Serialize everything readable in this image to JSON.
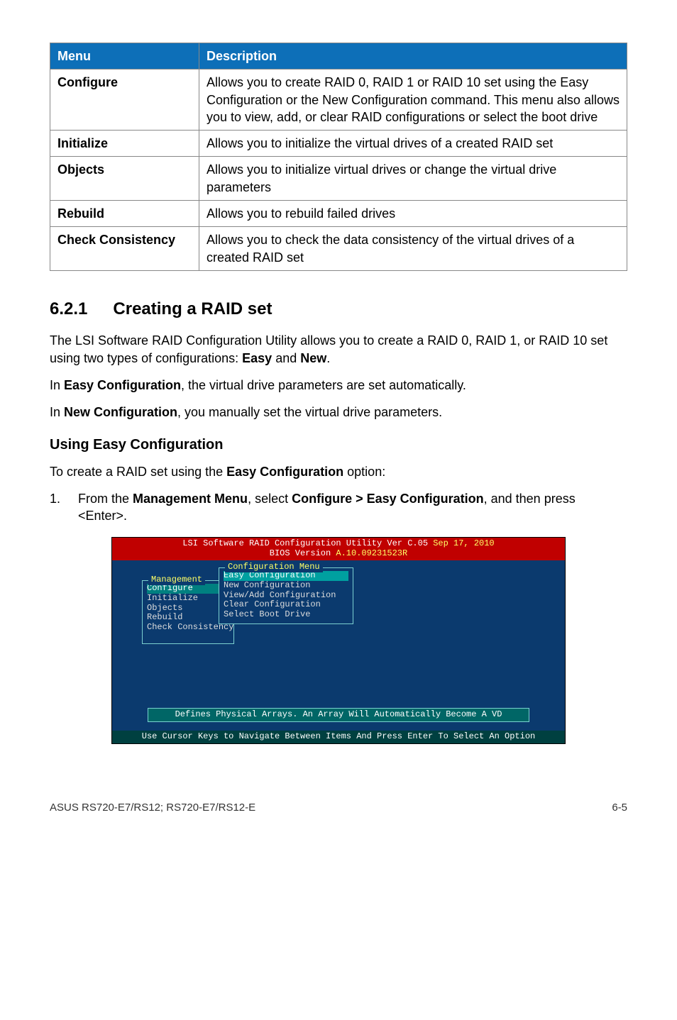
{
  "table": {
    "headers": [
      "Menu",
      "Description"
    ],
    "rows": [
      [
        "Configure",
        "Allows you to create RAID 0, RAID 1 or RAID 10 set using the Easy Configuration or the New Configuration command. This menu also allows you to view, add, or clear RAID configurations or select the boot drive"
      ],
      [
        "Initialize",
        "Allows you to initialize the virtual drives of a created RAID set"
      ],
      [
        "Objects",
        "Allows you to initialize virtual drives or change the virtual drive parameters"
      ],
      [
        "Rebuild",
        "Allows you to rebuild failed drives"
      ],
      [
        "Check Consistency",
        "Allows you to check the data consistency of the virtual drives of a created RAID set"
      ]
    ]
  },
  "section": {
    "number": "6.2.1",
    "title": "Creating a RAID set",
    "p1a": "The LSI Software RAID Configuration Utility allows you to create a RAID 0, RAID 1, or RAID 10 set using two types of configurations: ",
    "p1b_bold1": "Easy",
    "p1b_mid": " and ",
    "p1b_bold2": "New",
    "p1b_end": ".",
    "p2a": "In ",
    "p2b": "Easy Configuration",
    "p2c": ", the virtual drive parameters are set automatically.",
    "p3a": "In ",
    "p3b": "New Configuration",
    "p3c": ", you manually set the virtual drive parameters."
  },
  "sub": {
    "title": "Using Easy Configuration",
    "intro_a": "To create a RAID set using the ",
    "intro_b": "Easy Configuration",
    "intro_c": " option:",
    "step_n": "1.",
    "step_a": "From the ",
    "step_b": "Management Menu",
    "step_c": ", select ",
    "step_d": "Configure > Easy Configuration",
    "step_e": ", and then press <Enter>."
  },
  "bios": {
    "header_line1_a": "LSI Software RAID Configuration Utility Ver C.05 ",
    "header_line1_b": "Sep 17, 2010",
    "header_line2_a": "BIOS Version  ",
    "header_line2_b": "A.10.09231523R",
    "mgmt_title": "Management",
    "mgmt_items": [
      "Configure",
      "Initialize",
      "Objects",
      "Rebuild",
      "Check Consistency"
    ],
    "conf_title": "Configuration Menu",
    "conf_items": [
      "Easy Configuration",
      "New Configuration",
      "View/Add Configuration",
      "Clear Configuration",
      "Select Boot Drive"
    ],
    "status": "Defines Physical Arrays. An Array Will Automatically Become A VD",
    "footer": "Use Cursor Keys to Navigate Between Items And Press Enter To Select An Option"
  },
  "pagefoot": {
    "left": "ASUS RS720-E7/RS12; RS720-E7/RS12-E",
    "right": "6-5"
  }
}
